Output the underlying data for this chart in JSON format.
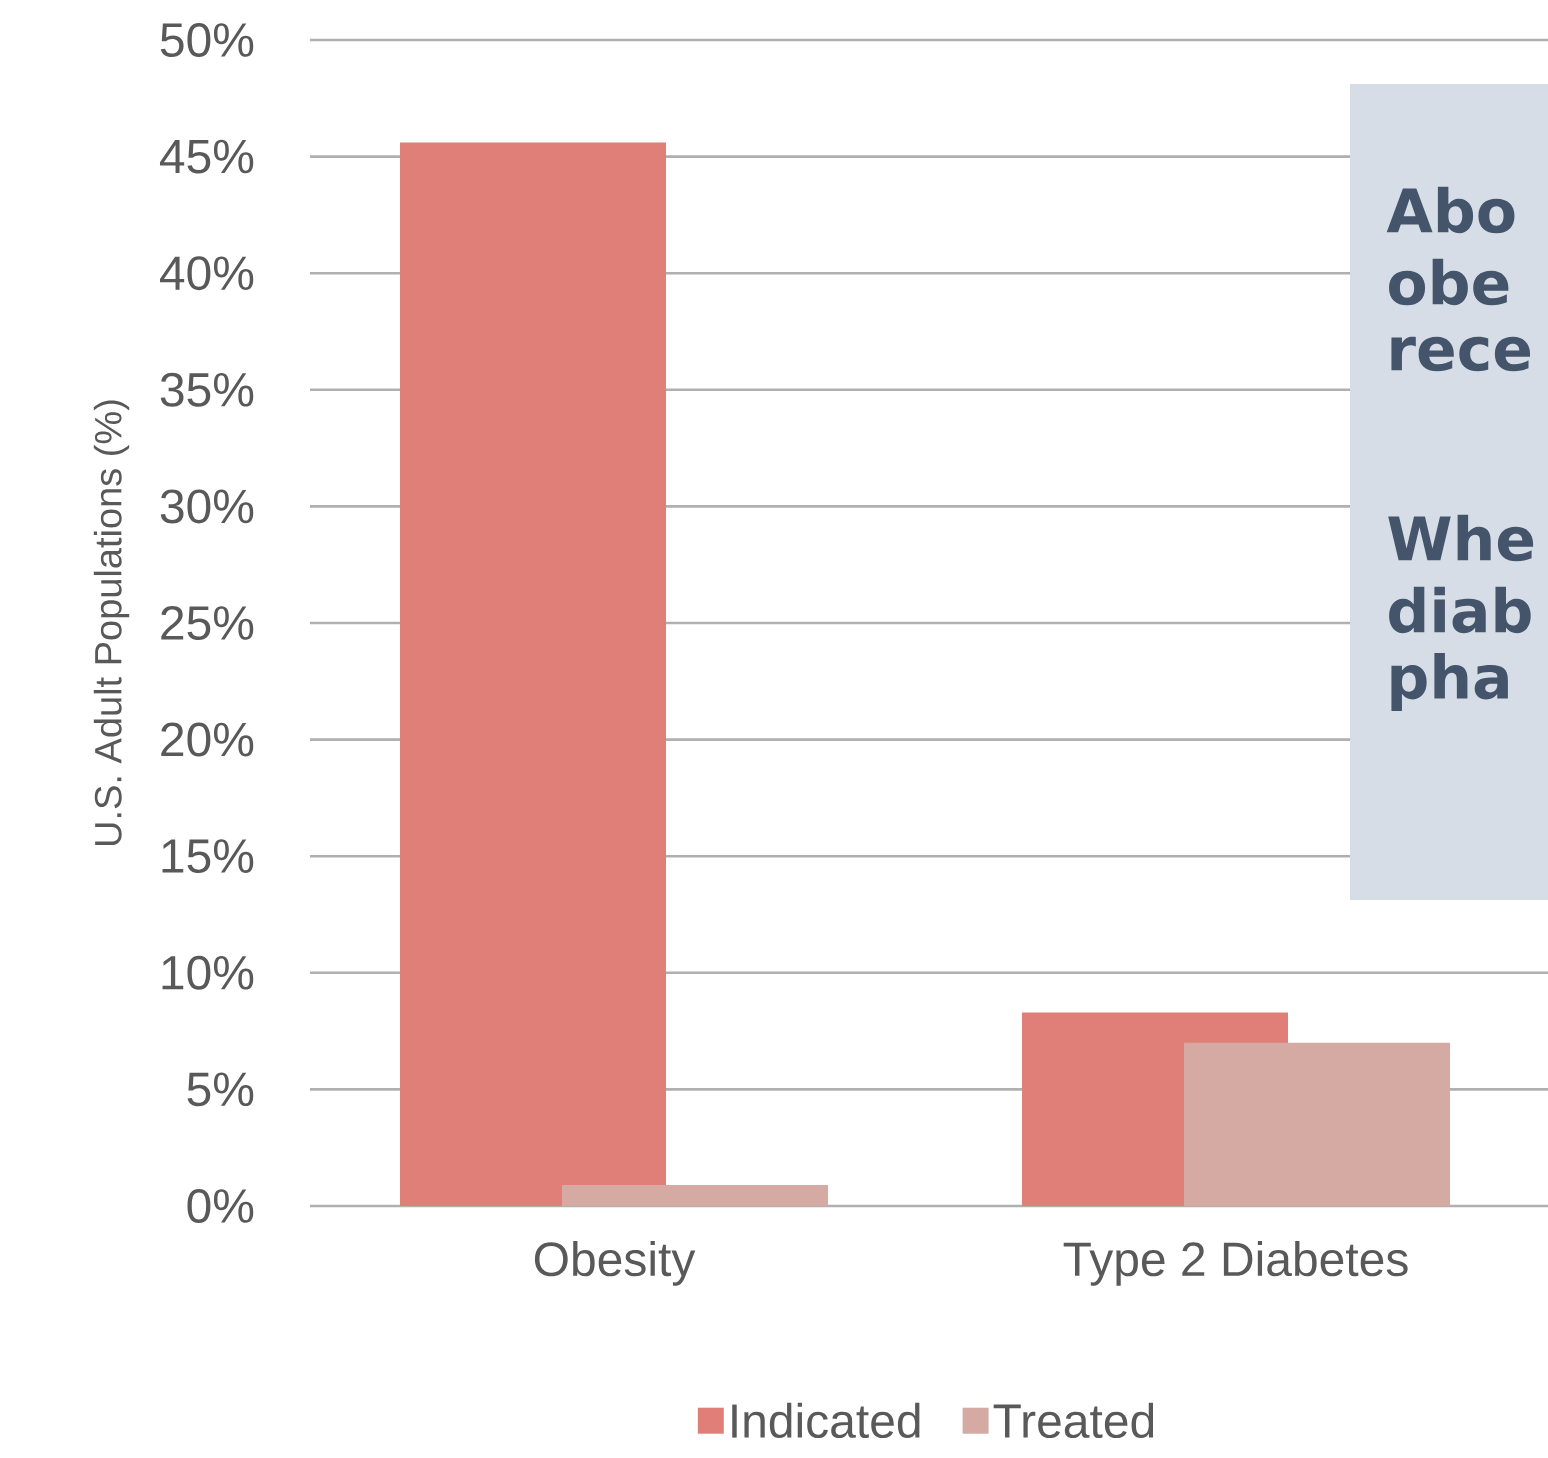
{
  "chart_data": {
    "type": "bar",
    "ylabel": "U.S. Adult Populations (%)",
    "categories": [
      "Obesity",
      "Type 2 Diabetes"
    ],
    "series": [
      {
        "name": "Indicated",
        "color": "#e07f78",
        "values": [
          45.6,
          8.3
        ]
      },
      {
        "name": "Treated",
        "color": "#d4aaa2",
        "values": [
          0.9,
          7.0
        ]
      }
    ],
    "ylim": [
      0,
      50
    ],
    "yticks": [
      {
        "value": 0,
        "label": "0%"
      },
      {
        "value": 5,
        "label": "5%"
      },
      {
        "value": 10,
        "label": "10%"
      },
      {
        "value": 15,
        "label": "15%"
      },
      {
        "value": 20,
        "label": "20%"
      },
      {
        "value": 25,
        "label": "25%"
      },
      {
        "value": 30,
        "label": "30%"
      },
      {
        "value": 35,
        "label": "35%"
      },
      {
        "value": 40,
        "label": "40%"
      },
      {
        "value": 45,
        "label": "45%"
      },
      {
        "value": 50,
        "label": "50%"
      }
    ],
    "grid": "y",
    "legend": "bottom",
    "annotations": [
      "Abo",
      "obe",
      "rece",
      "Whe",
      "diab",
      "pha"
    ]
  }
}
